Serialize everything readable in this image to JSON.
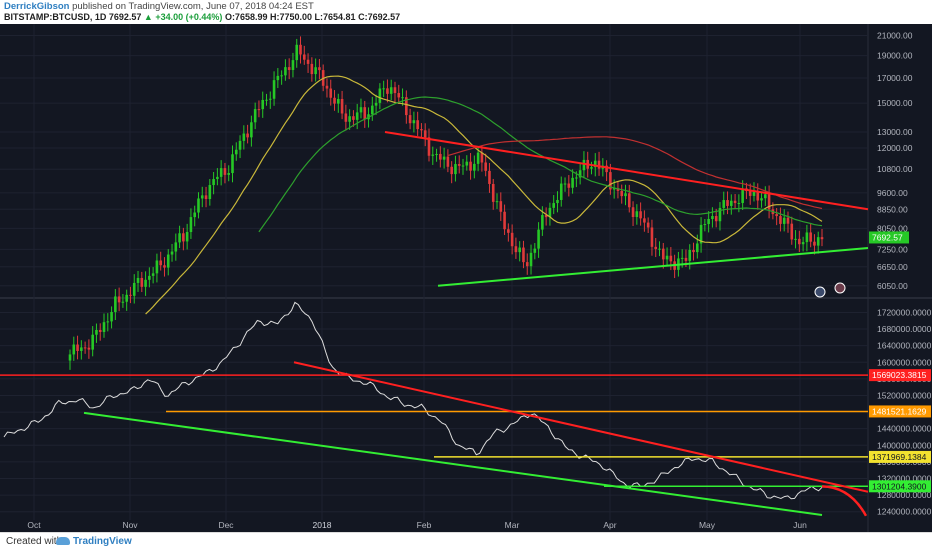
{
  "header": {
    "author": "DerrickGibson",
    "published_text": "published on TradingView.com, June 07, 2018 04:24 EST",
    "symbol": "BITSTAMP:BTCUSD, 1D",
    "last": "7692.57",
    "change": "+34.00 (+0.44%)",
    "open": "O:7658.99",
    "high": "H:7750.00",
    "low": "L:7654.81",
    "close": "C:7692.57"
  },
  "footer": {
    "created_with": "Created with",
    "brand": "TradingView"
  },
  "colors": {
    "background": "#131722",
    "grid": "#1e2230",
    "up": "#26c826",
    "down": "#e03a3a",
    "red_line": "#ff2020",
    "green_line": "#33ee33",
    "orange_line": "#ff9a00",
    "yellow_line": "#f2e22f",
    "ma_yellow": "#c9b83a",
    "ma_green": "#2da02d",
    "ma_red": "#c03030",
    "lower_series": "#dcdcdc"
  },
  "chart_data": [
    {
      "type": "candlestick",
      "series_name": "BITSTAMP:BTCUSD",
      "y_ticks": [
        "21000.00",
        "19000.00",
        "17000.00",
        "15000.00",
        "13000.00",
        "12000.00",
        "10800.00",
        "9600.00",
        "8850.00",
        "8050.00",
        "7250.00",
        "6650.00",
        "6050.00"
      ],
      "last_price_label": "7692.57",
      "x_ticks": [
        "Oct",
        "Nov",
        "Dec",
        "2018",
        "Feb",
        "Mar",
        "Apr",
        "May",
        "Jun"
      ],
      "approx_closes": [
        4300,
        4600,
        5500,
        6100,
        6700,
        7800,
        9800,
        11000,
        13800,
        16500,
        19400,
        17000,
        14000,
        14200,
        16500,
        13800,
        11500,
        10800,
        11400,
        8200,
        6600,
        8900,
        10300,
        11300,
        9700,
        8500,
        6900,
        6800,
        8400,
        9200,
        9700,
        8600,
        7500,
        7692
      ],
      "trendlines": [
        {
          "color": "red",
          "from": {
            "x": "2018-01-07",
            "y": 13000
          },
          "to": {
            "x": "2018-06-15",
            "y": 8850
          }
        },
        {
          "color": "green",
          "from": {
            "x": "2018-02-06",
            "y": 6050
          },
          "to": {
            "x": "2018-06-15",
            "y": 7300
          }
        }
      ]
    },
    {
      "type": "line",
      "series_name": "indicator",
      "y_ticks": [
        "1720000.0000",
        "1680000.0000",
        "1640000.0000",
        "1600000.0000",
        "1560000.0000",
        "1520000.0000",
        "1480000.0000",
        "1440000.0000",
        "1400000.0000",
        "1360000.0000",
        "1320000.0000",
        "1280000.0000",
        "1240000.0000"
      ],
      "level_labels": [
        {
          "text": "1569023.3815",
          "value": 1569023.3815,
          "color": "red"
        },
        {
          "text": "1481521.1629",
          "value": 1481521.1629,
          "color": "orange"
        },
        {
          "text": "1371969.1384",
          "value": 1371969.1384,
          "color": "yellow"
        },
        {
          "text": "1301204.3900",
          "value": 1301204.39,
          "color": "green"
        }
      ],
      "approx_values": [
        1420000,
        1440000,
        1460000,
        1500000,
        1510000,
        1490000,
        1520000,
        1530000,
        1560000,
        1520000,
        1550000,
        1570000,
        1600000,
        1650000,
        1700000,
        1690000,
        1740000,
        1700000,
        1590000,
        1560000,
        1550000,
        1520000,
        1500000,
        1490000,
        1460000,
        1400000,
        1380000,
        1430000,
        1450000,
        1480000,
        1440000,
        1390000,
        1370000,
        1350000,
        1310000,
        1300000,
        1320000,
        1350000,
        1370000,
        1360000,
        1330000,
        1300000,
        1280000,
        1270000,
        1290000,
        1301204
      ]
    }
  ]
}
